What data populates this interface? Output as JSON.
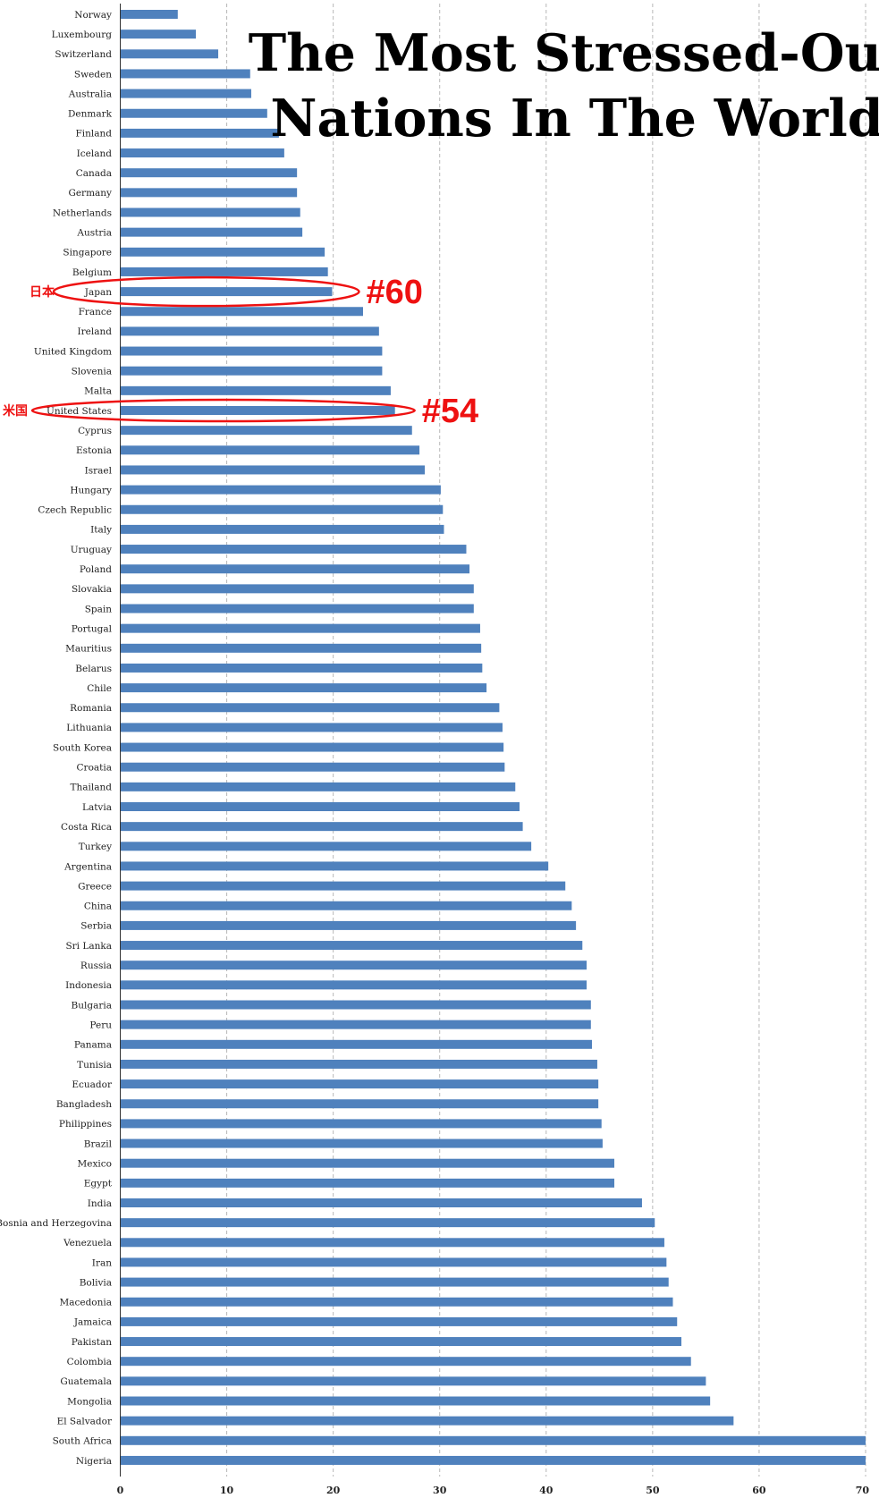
{
  "chart_data": {
    "type": "bar",
    "orientation": "horizontal",
    "title_lines": [
      "The Most Stressed-Out",
      "Nations In The World"
    ],
    "xlim": [
      0,
      70
    ],
    "xticks": [
      0,
      10,
      20,
      30,
      40,
      50,
      60,
      70
    ],
    "grid": "vertical dashed",
    "bar_color": "#4f81bd",
    "categories": [
      "Norway",
      "Luxembourg",
      "Switzerland",
      "Sweden",
      "Australia",
      "Denmark",
      "Finland",
      "Iceland",
      "Canada",
      "Germany",
      "Netherlands",
      "Austria",
      "Singapore",
      "Belgium",
      "Japan",
      "France",
      "Ireland",
      "United Kingdom",
      "Slovenia",
      "Malta",
      "United States",
      "Cyprus",
      "Estonia",
      "Israel",
      "Hungary",
      "Czech Republic",
      "Italy",
      "Uruguay",
      "Poland",
      "Slovakia",
      "Spain",
      "Portugal",
      "Mauritius",
      "Belarus",
      "Chile",
      "Romania",
      "Lithuania",
      "South Korea",
      "Croatia",
      "Thailand",
      "Latvia",
      "Costa Rica",
      "Turkey",
      "Argentina",
      "Greece",
      "China",
      "Serbia",
      "Sri Lanka",
      "Russia",
      "Indonesia",
      "Bulgaria",
      "Peru",
      "Panama",
      "Tunisia",
      "Ecuador",
      "Bangladesh",
      "Philippines",
      "Brazil",
      "Mexico",
      "Egypt",
      "India",
      "Bosnia and Herzegovina",
      "Venezuela",
      "Iran",
      "Bolivia",
      "Macedonia",
      "Jamaica",
      "Pakistan",
      "Colombia",
      "Guatemala",
      "Mongolia",
      "El Salvador",
      "South Africa",
      "Nigeria"
    ],
    "values": [
      5.4,
      7.1,
      9.2,
      12.2,
      12.3,
      13.8,
      14.9,
      15.4,
      16.6,
      16.6,
      16.9,
      17.1,
      19.2,
      19.5,
      19.9,
      22.8,
      24.3,
      24.6,
      24.6,
      25.4,
      25.8,
      27.4,
      28.1,
      28.6,
      30.1,
      30.3,
      30.4,
      32.5,
      32.8,
      33.2,
      33.2,
      33.8,
      33.9,
      34.0,
      34.4,
      35.6,
      35.9,
      36.0,
      36.1,
      37.1,
      37.5,
      37.8,
      38.6,
      40.2,
      41.8,
      42.4,
      42.8,
      43.4,
      43.8,
      43.8,
      44.2,
      44.2,
      44.3,
      44.8,
      44.9,
      44.9,
      45.2,
      45.3,
      46.4,
      46.4,
      49.0,
      50.2,
      51.1,
      51.3,
      51.5,
      51.9,
      52.3,
      52.7,
      53.6,
      55.0,
      55.4,
      57.6,
      70.0,
      70.0
    ],
    "annotations": [
      {
        "category": "Japan",
        "rank_label": "#60",
        "native_label": "日本"
      },
      {
        "category": "United States",
        "rank_label": "#54",
        "native_label": "米国"
      }
    ],
    "annotation_color": "#ee1111"
  }
}
